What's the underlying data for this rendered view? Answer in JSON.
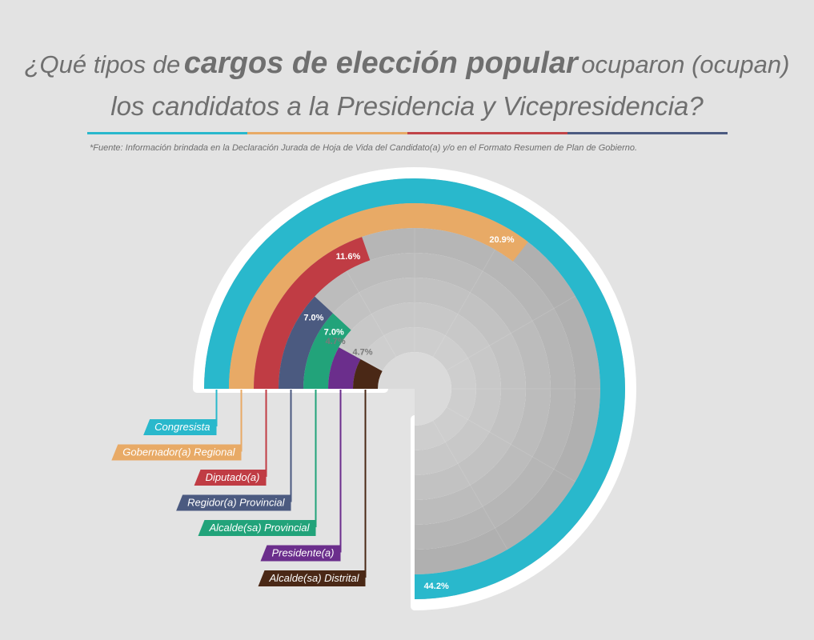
{
  "title": {
    "part1": "¿Qué tipos de",
    "part2": "cargos de elección popular",
    "part3": "ocuparon (ocupan)",
    "line2": "los candidatos a la Presidencia y Vicepresidencia?"
  },
  "divider_colors": [
    "#29b8cc",
    "#e8aa66",
    "#c04448",
    "#4b5a80"
  ],
  "source": "*Fuente: Información brindada en la Declaración Jurada de Hoja de Vida del Candidato(a) y/o en el Formato Resumen de Plan de Gobierno.",
  "chart_data": {
    "type": "radial-bar",
    "unit": "%",
    "series": [
      {
        "name": "Congresista",
        "value": 44.2,
        "label": "44.2%",
        "color": "#29b8cc"
      },
      {
        "name": "Gobernador(a) Regional",
        "value": 20.9,
        "label": "20.9%",
        "color": "#e8aa66"
      },
      {
        "name": "Diputado(a)",
        "value": 11.6,
        "label": "11.6%",
        "color": "#c03c44"
      },
      {
        "name": "Regidor(a) Provincial",
        "value": 7.0,
        "label": "7.0%",
        "color": "#4b5a80"
      },
      {
        "name": "Alcalde(sa) Provincial",
        "value": 7.0,
        "label": "7.0%",
        "color": "#22a37a"
      },
      {
        "name": "Presidente(a)",
        "value": 4.7,
        "label": "4.7%",
        "color": "#6b2e8c"
      },
      {
        "name": "Alcalde(sa) Distrital",
        "value": 4.7,
        "label": "4.7%",
        "color": "#4a2816"
      }
    ],
    "max": 44.2
  }
}
